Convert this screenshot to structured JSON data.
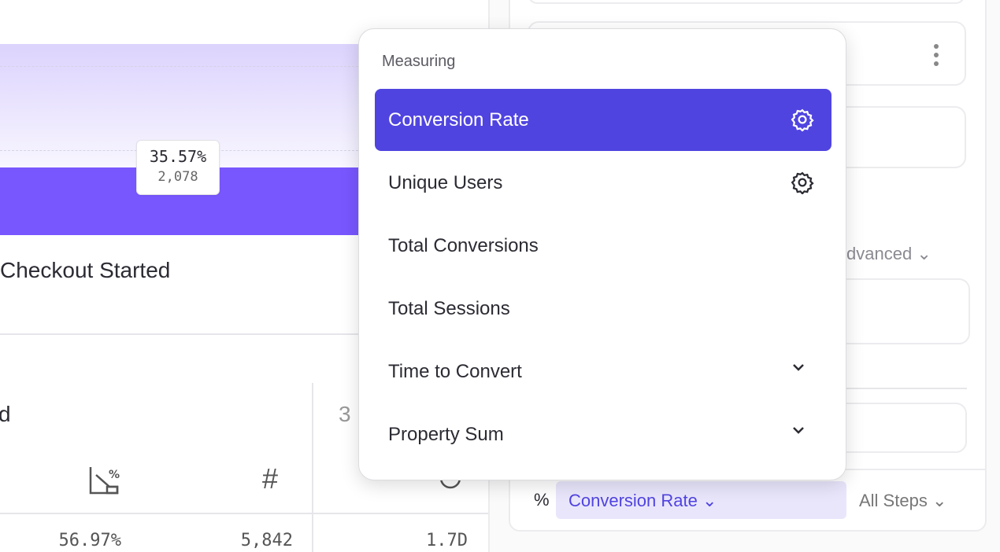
{
  "chart": {
    "tooltip_percent": "35.57%",
    "tooltip_count": "2,078",
    "step_name": "Checkout Started",
    "bar_color": "#7857ff"
  },
  "table": {
    "col_header_partial": "d",
    "col3_header_partial": "3",
    "icons": [
      "conversion-rate-icon",
      "hash-icon",
      "clock-icon"
    ],
    "values": [
      "56.97%",
      "5,842",
      "1.7D"
    ]
  },
  "sidebar": {
    "advanced_label": "dvanced",
    "measure_prefix": "%",
    "measure_value": "Conversion Rate",
    "steps_value": "All Steps"
  },
  "dropdown": {
    "header": "Measuring",
    "accent": "#5044e0",
    "items": [
      {
        "label": "Conversion Rate",
        "selected": true,
        "icon": "gear-icon"
      },
      {
        "label": "Unique Users",
        "icon": "gear-icon"
      },
      {
        "label": "Total Conversions"
      },
      {
        "label": "Total Sessions"
      },
      {
        "label": "Time to Convert",
        "icon": "chevron-down-icon"
      },
      {
        "label": "Property Sum",
        "icon": "chevron-down-icon"
      }
    ]
  }
}
